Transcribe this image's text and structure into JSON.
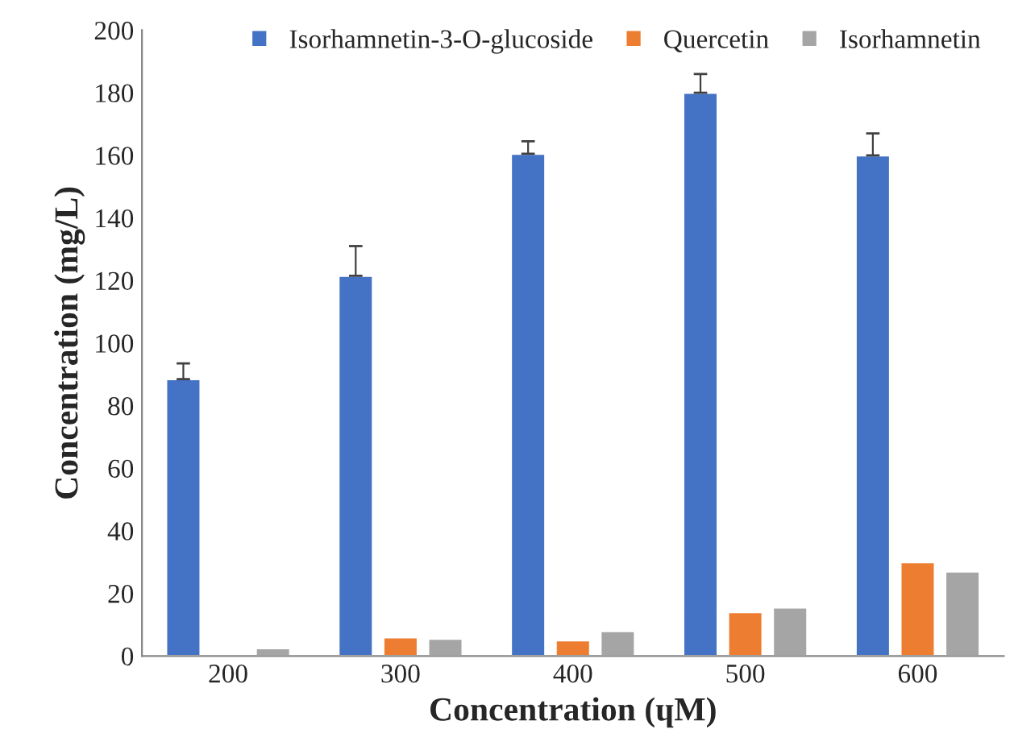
{
  "chart_data": {
    "type": "bar",
    "xlabel": "Concentration (ɥM)",
    "ylabel": "Concentration (mg/L)",
    "categories": [
      "200",
      "300",
      "400",
      "500",
      "600"
    ],
    "series": [
      {
        "name": "Isorhamnetin-3-O-glucoside",
        "color": "#4472c4",
        "values": [
          88.5,
          121.5,
          160.5,
          180,
          160
        ],
        "errors": [
          [
            88.5,
            93.5
          ],
          [
            121.5,
            131
          ],
          [
            160.5,
            164.5
          ],
          [
            180,
            186
          ],
          [
            160,
            167
          ]
        ]
      },
      {
        "name": "Quercetin",
        "color": "#ed7d31",
        "values": [
          null,
          6,
          5,
          14,
          30
        ]
      },
      {
        "name": "Isorhamnetin",
        "color": "#a5a5a5",
        "values": [
          2.5,
          5.5,
          8,
          15.5,
          27
        ]
      }
    ],
    "ylim": [
      0,
      200
    ],
    "yticks": [
      0,
      20,
      40,
      60,
      80,
      100,
      120,
      140,
      160,
      180,
      200
    ],
    "grid": false,
    "legend": "top"
  }
}
